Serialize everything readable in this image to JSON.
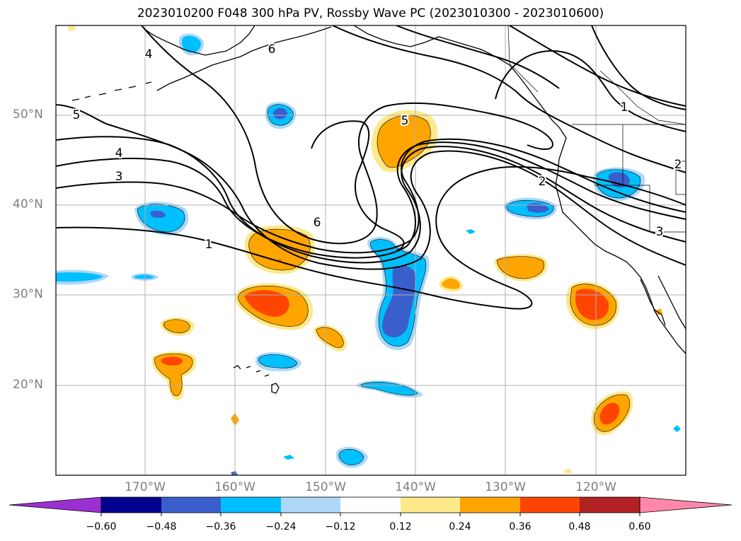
{
  "title": "2023010200 F048 300 hPa PV, Rossby Wave PC (2023010300 - 2023010600)",
  "map": {
    "lat_ticks": [
      "50°N",
      "40°N",
      "30°N",
      "20°N"
    ],
    "lon_ticks": [
      "170°W",
      "160°W",
      "150°W",
      "140°W",
      "130°W",
      "120°W"
    ],
    "extent": {
      "lon": [
        -180,
        -110
      ],
      "lat": [
        10,
        60
      ]
    },
    "grid": true,
    "contour_labels": [
      "1",
      "2",
      "3",
      "4",
      "5",
      "6"
    ],
    "contour_color": "#000000"
  },
  "colorbar": {
    "labels": [
      "−0.60",
      "−0.48",
      "−0.36",
      "−0.24",
      "−0.12",
      "0.12",
      "0.24",
      "0.36",
      "0.48",
      "0.60"
    ],
    "colors": {
      "under": "#9b30d0",
      "neg_060": "#000090",
      "neg_048": "#3a5fcd",
      "neg_036": "#00bfff",
      "neg_024": "#add8f7",
      "neutral": "#ffffff",
      "pos_012": "#fde98a",
      "pos_024": "#ffa500",
      "pos_036": "#ff4500",
      "pos_048": "#b22222",
      "over": "#ff88aa"
    }
  }
}
